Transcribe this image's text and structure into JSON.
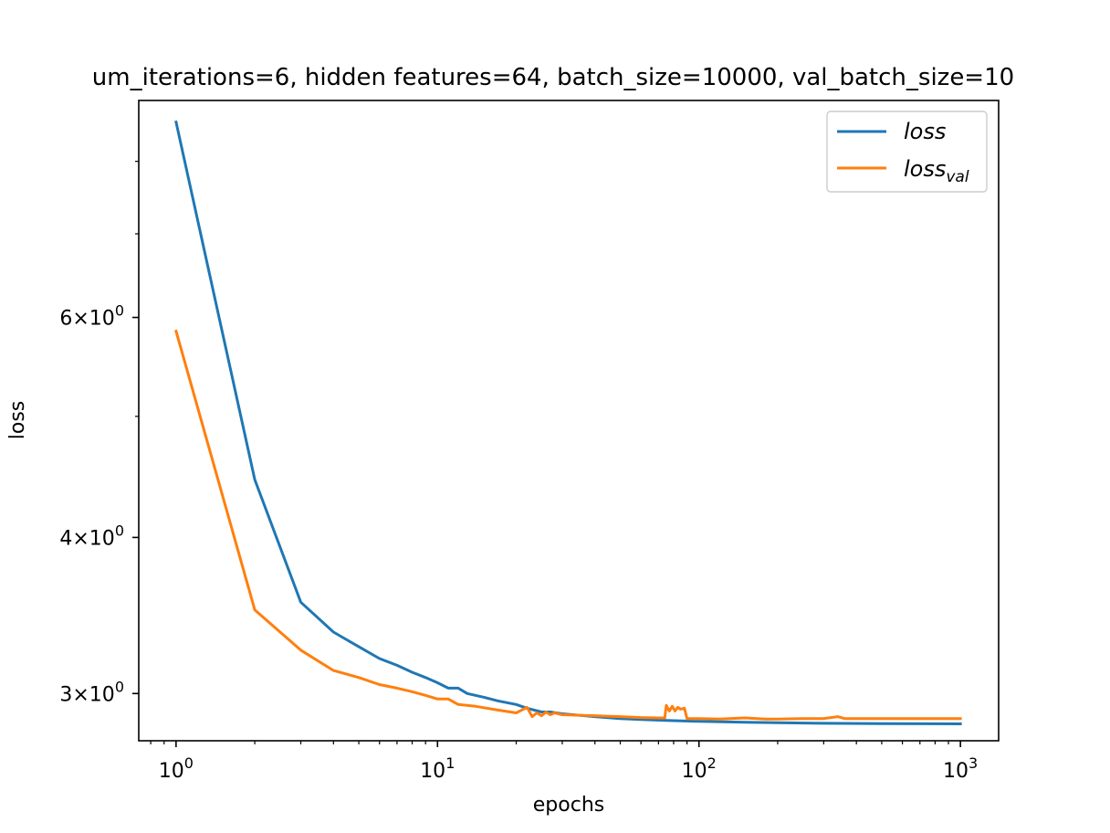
{
  "chart_data": {
    "type": "line",
    "title": "um_iterations=6, hidden features=64, batch_size=10000, val_batch_size=10",
    "xlabel": "epochs",
    "ylabel": "loss",
    "xscale": "log",
    "yscale": "log",
    "xlim": [
      0.72,
      1400
    ],
    "ylim": [
      2.75,
      8.95
    ],
    "x_tick_labels": [
      {
        "base": "10",
        "exp": "0",
        "value": 1
      },
      {
        "base": "10",
        "exp": "1",
        "value": 10
      },
      {
        "base": "10",
        "exp": "2",
        "value": 100
      },
      {
        "base": "10",
        "exp": "3",
        "value": 1000
      }
    ],
    "y_tick_labels": [
      {
        "mant": "3",
        "base": "10",
        "exp": "0",
        "value": 3
      },
      {
        "mant": "4",
        "base": "10",
        "exp": "0",
        "value": 4
      },
      {
        "mant": "6",
        "base": "10",
        "exp": "0",
        "value": 6
      }
    ],
    "legend_position": "top-right",
    "grid": false,
    "series": [
      {
        "name": "loss",
        "color": "#1f77b4",
        "x": [
          1,
          2,
          3,
          4,
          5,
          6,
          7,
          8,
          9,
          10,
          11,
          12,
          13,
          15,
          17,
          20,
          22,
          25,
          27,
          30,
          40,
          50,
          60,
          75,
          100,
          150,
          200,
          300,
          500,
          1000
        ],
        "y": [
          8.6,
          4.45,
          3.55,
          3.36,
          3.27,
          3.2,
          3.16,
          3.12,
          3.09,
          3.06,
          3.03,
          3.03,
          3.0,
          2.98,
          2.96,
          2.94,
          2.92,
          2.9,
          2.9,
          2.89,
          2.875,
          2.865,
          2.86,
          2.855,
          2.85,
          2.845,
          2.843,
          2.84,
          2.838,
          2.837
        ]
      },
      {
        "name": "loss_val",
        "color": "#ff7f0e",
        "x": [
          1,
          2,
          3,
          4,
          5,
          6,
          7,
          8,
          9,
          10,
          11,
          12,
          14,
          17,
          20,
          22,
          23,
          24,
          25,
          26,
          27,
          28,
          30,
          40,
          50,
          60,
          70,
          74,
          75,
          77,
          79,
          81,
          83,
          85,
          88,
          90,
          100,
          120,
          150,
          180,
          200,
          250,
          300,
          340,
          360,
          400,
          500,
          700,
          1000
        ],
        "y": [
          5.85,
          3.5,
          3.25,
          3.13,
          3.09,
          3.05,
          3.03,
          3.01,
          2.99,
          2.97,
          2.97,
          2.94,
          2.93,
          2.91,
          2.895,
          2.925,
          2.875,
          2.895,
          2.88,
          2.9,
          2.885,
          2.895,
          2.885,
          2.88,
          2.875,
          2.87,
          2.868,
          2.868,
          2.935,
          2.905,
          2.93,
          2.905,
          2.925,
          2.915,
          2.92,
          2.865,
          2.865,
          2.862,
          2.868,
          2.862,
          2.862,
          2.865,
          2.865,
          2.875,
          2.865,
          2.865,
          2.865,
          2.865,
          2.865
        ]
      }
    ]
  },
  "legend": {
    "loss": "loss",
    "loss_val_main": "loss",
    "loss_val_sub": "val"
  }
}
